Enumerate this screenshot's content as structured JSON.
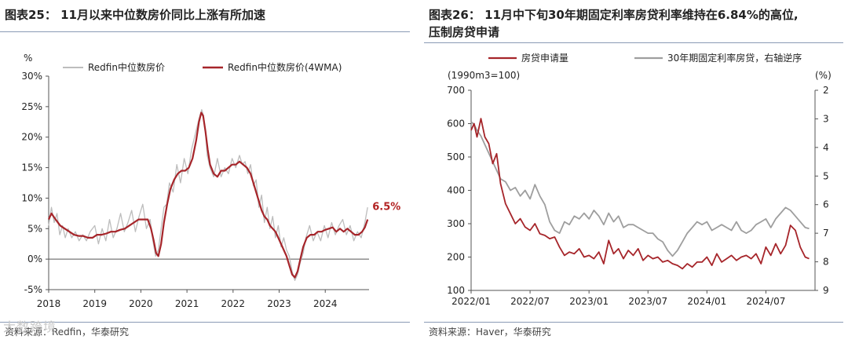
{
  "left": {
    "title": "图表25： 11月以来中位数房价同比上涨有所加速",
    "source": "资料来源：Redfin，华泰研究",
    "watermark": "大数跨境",
    "chart_data": {
      "type": "line",
      "y_unit": "%",
      "ylim": [
        -5,
        30
      ],
      "yticks": [
        -5,
        0,
        5,
        10,
        15,
        20,
        25,
        30
      ],
      "ytick_labels": [
        "-5%",
        "0%",
        "5%",
        "10%",
        "15%",
        "20%",
        "25%",
        "30%"
      ],
      "xlim": [
        2018.0,
        2024.95
      ],
      "xticks": [
        2018,
        2019,
        2020,
        2021,
        2022,
        2023,
        2024
      ],
      "xtick_labels": [
        "2018",
        "2019",
        "2020",
        "2021",
        "2022",
        "2023",
        "2024"
      ],
      "annotation": {
        "text": "6.5%",
        "x": 2024.92,
        "y": 6.5,
        "color": "#b22222"
      },
      "series": [
        {
          "name": "Redfin中位数房价",
          "color": "#bdbdbd",
          "x": [
            2018.0,
            2018.06,
            2018.12,
            2018.18,
            2018.24,
            2018.3,
            2018.36,
            2018.42,
            2018.5,
            2018.58,
            2018.66,
            2018.74,
            2018.82,
            2018.9,
            2019.0,
            2019.08,
            2019.16,
            2019.24,
            2019.32,
            2019.4,
            2019.48,
            2019.56,
            2019.64,
            2019.72,
            2019.8,
            2019.88,
            2019.96,
            2020.04,
            2020.12,
            2020.2,
            2020.26,
            2020.32,
            2020.38,
            2020.44,
            2020.5,
            2020.56,
            2020.62,
            2020.7,
            2020.78,
            2020.86,
            2020.94,
            2021.02,
            2021.1,
            2021.18,
            2021.26,
            2021.32,
            2021.36,
            2021.4,
            2021.44,
            2021.5,
            2021.58,
            2021.66,
            2021.74,
            2021.82,
            2021.9,
            2021.98,
            2022.06,
            2022.14,
            2022.2,
            2022.26,
            2022.32,
            2022.38,
            2022.44,
            2022.5,
            2022.56,
            2022.62,
            2022.68,
            2022.74,
            2022.8,
            2022.86,
            2022.92,
            2022.98,
            2023.04,
            2023.1,
            2023.16,
            2023.22,
            2023.28,
            2023.34,
            2023.4,
            2023.46,
            2023.52,
            2023.58,
            2023.66,
            2023.74,
            2023.82,
            2023.9,
            2023.98,
            2024.06,
            2024.14,
            2024.22,
            2024.3,
            2024.38,
            2024.46,
            2024.54,
            2024.62,
            2024.7,
            2024.78,
            2024.86,
            2024.92
          ],
          "y": [
            5.5,
            8.5,
            6.0,
            7.5,
            4.0,
            5.5,
            3.5,
            5.0,
            3.5,
            4.5,
            3.0,
            4.0,
            3.0,
            4.5,
            5.5,
            2.5,
            5.0,
            3.0,
            6.5,
            3.5,
            5.0,
            7.5,
            4.5,
            6.0,
            8.0,
            4.5,
            7.0,
            9.0,
            5.0,
            6.5,
            3.0,
            0.5,
            1.5,
            5.0,
            8.5,
            9.0,
            12.5,
            11.0,
            15.5,
            12.5,
            16.5,
            14.0,
            18.0,
            20.5,
            23.0,
            24.5,
            23.5,
            21.0,
            17.0,
            15.0,
            13.5,
            16.5,
            13.5,
            15.0,
            14.0,
            16.5,
            15.0,
            17.0,
            15.5,
            16.0,
            14.0,
            15.5,
            12.0,
            13.0,
            8.5,
            10.5,
            6.0,
            8.5,
            5.0,
            7.0,
            3.5,
            5.5,
            2.0,
            3.5,
            1.5,
            0.5,
            -2.0,
            -3.5,
            -2.5,
            -0.5,
            1.0,
            3.5,
            5.5,
            3.0,
            4.5,
            3.0,
            5.5,
            3.5,
            6.0,
            4.0,
            5.5,
            6.5,
            4.0,
            5.5,
            3.0,
            4.5,
            3.5,
            6.0,
            8.5
          ]
        },
        {
          "name": "Redfin中位数房价(4WMA)",
          "color": "#a6252a",
          "x": [
            2018.0,
            2018.06,
            2018.15,
            2018.25,
            2018.35,
            2018.45,
            2018.55,
            2018.65,
            2018.75,
            2018.85,
            2018.95,
            2019.05,
            2019.15,
            2019.25,
            2019.35,
            2019.45,
            2019.55,
            2019.65,
            2019.75,
            2019.85,
            2019.95,
            2020.05,
            2020.15,
            2020.22,
            2020.28,
            2020.33,
            2020.38,
            2020.44,
            2020.5,
            2020.57,
            2020.64,
            2020.72,
            2020.8,
            2020.88,
            2020.96,
            2021.04,
            2021.12,
            2021.2,
            2021.26,
            2021.31,
            2021.35,
            2021.4,
            2021.45,
            2021.5,
            2021.58,
            2021.66,
            2021.74,
            2021.82,
            2021.9,
            2021.98,
            2022.06,
            2022.14,
            2022.22,
            2022.3,
            2022.38,
            2022.44,
            2022.5,
            2022.56,
            2022.62,
            2022.68,
            2022.74,
            2022.8,
            2022.86,
            2022.92,
            2022.98,
            2023.04,
            2023.1,
            2023.16,
            2023.22,
            2023.28,
            2023.34,
            2023.4,
            2023.46,
            2023.52,
            2023.6,
            2023.68,
            2023.76,
            2023.84,
            2023.92,
            2024.0,
            2024.08,
            2024.16,
            2024.24,
            2024.32,
            2024.4,
            2024.48,
            2024.56,
            2024.64,
            2024.72,
            2024.8,
            2024.86,
            2024.92
          ],
          "y": [
            6.5,
            7.5,
            6.5,
            5.5,
            5.0,
            4.5,
            4.0,
            3.8,
            3.8,
            3.5,
            3.5,
            4.0,
            4.0,
            4.2,
            4.5,
            4.5,
            4.8,
            5.0,
            5.5,
            6.0,
            6.5,
            6.5,
            6.5,
            5.0,
            3.0,
            1.0,
            0.5,
            2.5,
            6.0,
            9.0,
            11.5,
            13.0,
            14.0,
            14.5,
            14.5,
            15.0,
            16.5,
            19.5,
            22.5,
            24.0,
            23.5,
            21.0,
            18.0,
            15.5,
            14.0,
            13.5,
            14.5,
            14.5,
            15.0,
            15.5,
            15.5,
            16.0,
            15.5,
            15.0,
            14.0,
            12.5,
            11.0,
            9.5,
            8.0,
            7.0,
            6.5,
            5.5,
            5.0,
            4.5,
            3.5,
            2.5,
            1.5,
            0.5,
            -1.0,
            -2.5,
            -3.0,
            -2.0,
            0.0,
            2.0,
            3.5,
            4.0,
            4.0,
            4.5,
            4.5,
            4.8,
            5.0,
            5.2,
            4.5,
            5.0,
            4.5,
            5.0,
            4.5,
            4.0,
            4.0,
            4.5,
            5.2,
            6.5
          ]
        }
      ]
    }
  },
  "right": {
    "title_line1": "图表26： 11月中下旬30年期固定利率房贷利率维持在6.84%的高位,",
    "title_line2": "压制房贷申请",
    "source": "资料来源：Haver，华泰研究",
    "chart_data": {
      "type": "line",
      "left_unit": "(1990m3=100)",
      "right_unit": "(%)",
      "ylim_left": [
        100,
        700
      ],
      "yticks_left": [
        100,
        200,
        300,
        400,
        500,
        600,
        700
      ],
      "ytick_labels_left": [
        "100",
        "200",
        "300",
        "400",
        "500",
        "600",
        "700"
      ],
      "ylim_right_inverted": [
        2,
        9
      ],
      "yticks_right": [
        2,
        3,
        4,
        5,
        6,
        7,
        8,
        9
      ],
      "ytick_labels_right": [
        "2",
        "3",
        "4",
        "5",
        "6",
        "7",
        "8",
        "9"
      ],
      "xlim": [
        0,
        35
      ],
      "xticks": [
        0,
        6,
        12,
        18,
        24,
        30
      ],
      "xtick_labels": [
        "2022/01",
        "2022/07",
        "2023/01",
        "2023/07",
        "2024/01",
        "2024/07"
      ],
      "series": [
        {
          "name": "房贷申请量",
          "axis": "left",
          "color": "#a6252a",
          "x": [
            0,
            0.3,
            0.6,
            1.0,
            1.4,
            1.8,
            2.2,
            2.6,
            3.0,
            3.5,
            4.0,
            4.5,
            5.0,
            5.5,
            6.0,
            6.5,
            7.0,
            7.5,
            8.0,
            8.5,
            9.0,
            9.5,
            10.0,
            10.5,
            11.0,
            11.5,
            12.0,
            12.5,
            13.0,
            13.5,
            14.0,
            14.5,
            15.0,
            15.5,
            16.0,
            16.5,
            17.0,
            17.5,
            18.0,
            18.5,
            19.0,
            19.5,
            20.0,
            20.5,
            21.0,
            21.5,
            22.0,
            22.5,
            23.0,
            23.5,
            24.0,
            24.5,
            25.0,
            25.5,
            26.0,
            26.5,
            27.0,
            27.5,
            28.0,
            28.5,
            29.0,
            29.5,
            30.0,
            30.5,
            31.0,
            31.5,
            32.0,
            32.5,
            33.0,
            33.5,
            34.0,
            34.4
          ],
          "y": [
            580,
            600,
            560,
            615,
            560,
            540,
            480,
            510,
            420,
            360,
            330,
            300,
            315,
            290,
            280,
            300,
            270,
            265,
            255,
            260,
            230,
            205,
            215,
            210,
            225,
            200,
            205,
            195,
            215,
            180,
            250,
            210,
            225,
            195,
            220,
            205,
            225,
            190,
            205,
            195,
            200,
            185,
            190,
            180,
            175,
            165,
            180,
            170,
            185,
            185,
            200,
            175,
            210,
            185,
            195,
            205,
            190,
            200,
            205,
            195,
            210,
            180,
            230,
            205,
            240,
            210,
            235,
            295,
            280,
            230,
            200,
            195
          ]
        },
        {
          "name": "30年期固定利率房贷，右轴逆序",
          "axis": "right",
          "color": "#9e9e9e",
          "x": [
            0,
            0.3,
            0.6,
            1.0,
            1.4,
            1.8,
            2.2,
            2.6,
            3.0,
            3.5,
            4.0,
            4.5,
            5.0,
            5.5,
            6.0,
            6.5,
            7.0,
            7.5,
            8.0,
            8.5,
            9.0,
            9.5,
            10.0,
            10.5,
            11.0,
            11.5,
            12.0,
            12.5,
            13.0,
            13.5,
            14.0,
            14.5,
            15.0,
            15.5,
            16.0,
            16.5,
            17.0,
            17.5,
            18.0,
            18.5,
            19.0,
            19.5,
            20.0,
            20.5,
            21.0,
            21.5,
            22.0,
            22.5,
            23.0,
            23.5,
            24.0,
            24.5,
            25.0,
            25.5,
            26.0,
            26.5,
            27.0,
            27.5,
            28.0,
            28.5,
            29.0,
            29.5,
            30.0,
            30.5,
            31.0,
            31.5,
            32.0,
            32.5,
            33.0,
            33.5,
            34.0,
            34.4
          ],
          "y": [
            3.1,
            3.2,
            3.4,
            3.6,
            3.9,
            4.2,
            4.5,
            4.8,
            5.1,
            5.2,
            5.5,
            5.4,
            5.7,
            5.5,
            5.8,
            5.3,
            5.7,
            6.0,
            6.6,
            6.9,
            7.0,
            6.6,
            6.7,
            6.4,
            6.5,
            6.3,
            6.5,
            6.2,
            6.4,
            6.7,
            6.3,
            6.6,
            6.4,
            6.8,
            6.7,
            6.7,
            6.8,
            6.9,
            7.0,
            7.0,
            7.2,
            7.3,
            7.6,
            7.8,
            7.6,
            7.3,
            7.0,
            6.8,
            6.6,
            6.7,
            6.6,
            6.9,
            6.8,
            6.7,
            6.8,
            6.9,
            6.6,
            6.9,
            7.0,
            6.9,
            6.7,
            6.6,
            6.5,
            6.8,
            6.5,
            6.3,
            6.1,
            6.2,
            6.4,
            6.6,
            6.8,
            6.84
          ]
        }
      ]
    }
  }
}
